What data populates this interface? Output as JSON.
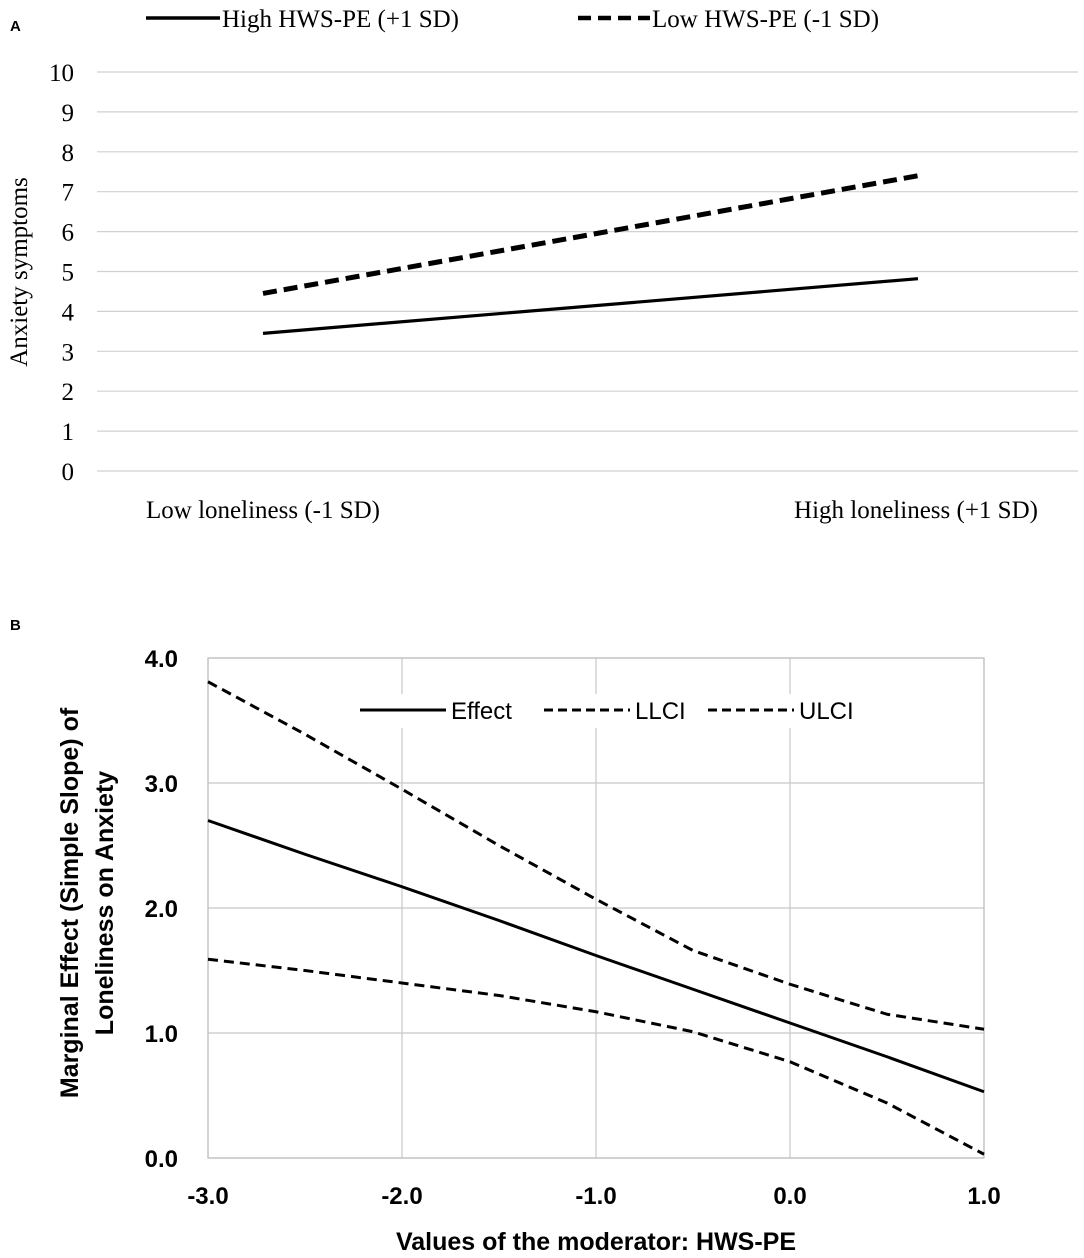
{
  "panel_a": {
    "label": "A",
    "legend": [
      "High HWS-PE (+1 SD)",
      "Low HWS-PE (-1 SD)"
    ],
    "ylabel": "Anxiety symptoms",
    "categories": [
      "Low loneliness (-1 SD)",
      "High loneliness (+1 SD)"
    ],
    "yticks": [
      "0",
      "1",
      "2",
      "3",
      "4",
      "5",
      "6",
      "7",
      "8",
      "9",
      "10"
    ]
  },
  "panel_b": {
    "label": "B",
    "legend": [
      "Effect",
      "LLCI",
      "ULCI"
    ],
    "ylabel_line1": "Marginal Effect (Simple Slope) of",
    "ylabel_line2": "Loneliness on Anxiety",
    "xlabel": "Values of the moderator: HWS-PE",
    "xticks": [
      "-3.0",
      "-2.0",
      "-1.0",
      "0.0",
      "1.0"
    ],
    "yticks": [
      "0.0",
      "1.0",
      "2.0",
      "3.0",
      "4.0"
    ]
  },
  "chart_data": [
    {
      "type": "line",
      "title": "A",
      "categories": [
        "Low loneliness (-1 SD)",
        "High loneliness (+1 SD)"
      ],
      "series": [
        {
          "name": "High HWS-PE (+1 SD)",
          "style": "solid",
          "values": [
            3.45,
            4.82
          ]
        },
        {
          "name": "Low HWS-PE (-1 SD)",
          "style": "dashed",
          "values": [
            4.45,
            7.4
          ]
        }
      ],
      "xlabel": "",
      "ylabel": "Anxiety symptoms",
      "ylim": [
        0,
        10
      ],
      "grid": true,
      "legend": "top"
    },
    {
      "type": "line",
      "title": "B",
      "x": [
        -3.0,
        -2.5,
        -2.0,
        -1.5,
        -1.0,
        -0.5,
        0.0,
        0.5,
        1.0
      ],
      "series": [
        {
          "name": "Effect",
          "style": "solid",
          "values": [
            2.7,
            2.43,
            2.17,
            1.9,
            1.62,
            1.35,
            1.08,
            0.81,
            0.53
          ]
        },
        {
          "name": "LLCI",
          "style": "dashed",
          "values": [
            1.59,
            1.5,
            1.4,
            1.3,
            1.17,
            1.01,
            0.77,
            0.44,
            0.03
          ]
        },
        {
          "name": "ULCI",
          "style": "dashed",
          "values": [
            3.81,
            3.39,
            2.95,
            2.5,
            2.07,
            1.66,
            1.39,
            1.15,
            1.03
          ]
        }
      ],
      "xlabel": "Values of the moderator: HWS-PE",
      "ylabel": "Marginal Effect (Simple Slope) of Loneliness on Anxiety",
      "xlim": [
        -3.0,
        1.0
      ],
      "ylim": [
        0.0,
        4.0
      ],
      "grid": true,
      "legend": "top"
    }
  ]
}
